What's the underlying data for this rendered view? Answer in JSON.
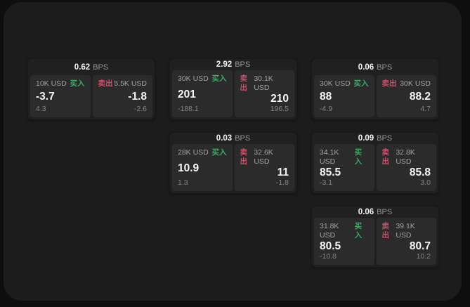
{
  "labels": {
    "bps_unit": "BPS",
    "buy": "买入",
    "sell": "卖出"
  },
  "colors": {
    "buy": "#3cab64",
    "sell": "#c7506a",
    "window_background": "#1c1c1c",
    "card_background": "#202020",
    "panel_background": "#2b2b2b",
    "primary_text": "#f5f5f5",
    "secondary_text": "#969696"
  },
  "cards": [
    {
      "bps": "0.62",
      "buy": {
        "amount": "10K USD",
        "price": "-3.7",
        "delta": "4.3"
      },
      "sell": {
        "amount": "5.5K USD",
        "price": "-1.8",
        "delta": "-2.6"
      }
    },
    {
      "bps": "2.92",
      "buy": {
        "amount": "30K USD",
        "price": "201",
        "delta": "-188.1"
      },
      "sell": {
        "amount": "30.1K USD",
        "price": "210",
        "delta": "196.5"
      }
    },
    {
      "bps": "0.06",
      "buy": {
        "amount": "30K USD",
        "price": "88",
        "delta": "-4.9"
      },
      "sell": {
        "amount": "30K USD",
        "price": "88.2",
        "delta": "4.7"
      }
    },
    {
      "bps": "0.03",
      "buy": {
        "amount": "28K USD",
        "price": "10.9",
        "delta": "1.3"
      },
      "sell": {
        "amount": "32.6K USD",
        "price": "11",
        "delta": "-1.8"
      }
    },
    {
      "bps": "0.09",
      "buy": {
        "amount": "34.1K USD",
        "price": "85.5",
        "delta": "-3.1"
      },
      "sell": {
        "amount": "32.8K USD",
        "price": "85.8",
        "delta": "3.0"
      }
    },
    {
      "bps": "0.06",
      "buy": {
        "amount": "31.8K USD",
        "price": "80.5",
        "delta": "-10.8"
      },
      "sell": {
        "amount": "39.1K USD",
        "price": "80.7",
        "delta": "10.2"
      }
    }
  ]
}
